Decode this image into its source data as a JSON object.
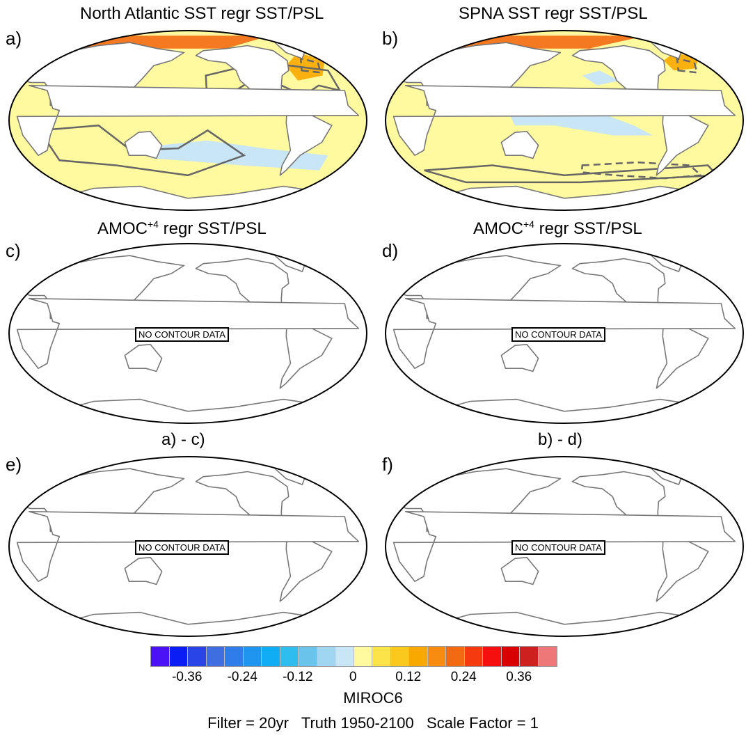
{
  "panels": [
    {
      "letter": "a)",
      "title": "North Atlantic SST regr SST/PSL",
      "has_data": true
    },
    {
      "letter": "b)",
      "title": "SPNA SST regr SST/PSL",
      "has_data": true
    },
    {
      "letter": "c)",
      "title_main": "AMOC",
      "title_sup": "+4",
      "title_rest": " regr SST/PSL",
      "has_data": false,
      "no_data_label": "NO CONTOUR DATA"
    },
    {
      "letter": "d)",
      "title_main": "AMOC",
      "title_sup": "+4",
      "title_rest": " regr SST/PSL",
      "has_data": false,
      "no_data_label": "NO CONTOUR DATA"
    },
    {
      "letter": "e)",
      "title": "a) - c)",
      "has_data": false,
      "no_data_label": "NO CONTOUR DATA"
    },
    {
      "letter": "f)",
      "title": "b) - d)",
      "has_data": false,
      "no_data_label": "NO CONTOUR DATA"
    }
  ],
  "chart_data": {
    "type": "heatmap",
    "variable": "SST regression (shaded) with PSL contours",
    "colorbar": {
      "colors": [
        "#4a12f5",
        "#0a1df5",
        "#2a45e6",
        "#3f6ee0",
        "#2f7de8",
        "#1f95f0",
        "#10adf5",
        "#2fbdf0",
        "#6ac3ea",
        "#a0d6f2",
        "#c8e6f5",
        "#fffaa0",
        "#fde34a",
        "#fbc81e",
        "#f9a800",
        "#f78c10",
        "#f46a12",
        "#f53a10",
        "#f50f0f",
        "#d80000",
        "#cf2020",
        "#ee7878"
      ],
      "tick_labels": [
        "-0.36",
        "-0.24",
        "-0.12",
        "0",
        "0.12",
        "0.24",
        "0.36"
      ],
      "tick_values": [
        -0.36,
        -0.24,
        -0.12,
        0,
        0.12,
        0.24,
        0.36
      ]
    },
    "model": "MIROC6",
    "filter_text": "Filter = 20yr   Truth 1950-2100   Scale Factor = 1"
  }
}
